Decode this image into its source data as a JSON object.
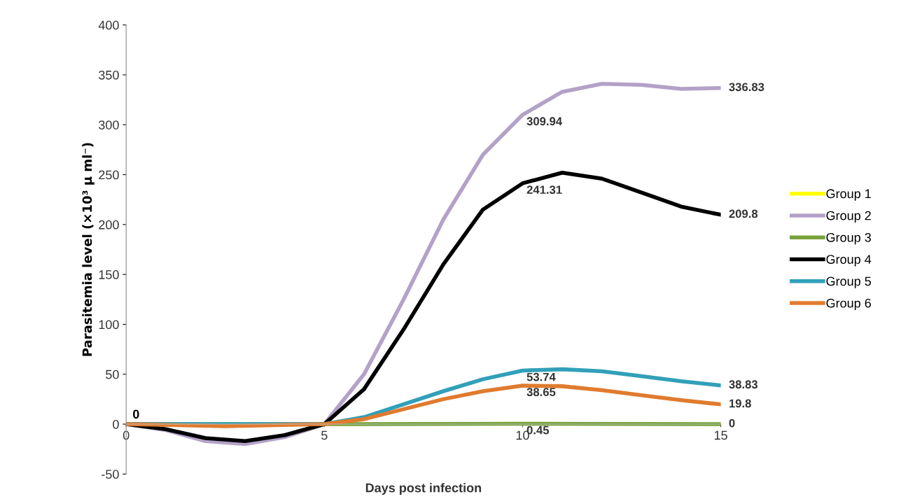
{
  "chart_data": {
    "type": "line",
    "xlabel": "Days post infection",
    "ylabel": "Parasitemia level (×10³ μ ml⁻)",
    "xlim": [
      0,
      15
    ],
    "xticks": [
      0,
      5,
      10,
      15
    ],
    "ylim": [
      -50,
      400
    ],
    "yticks": [
      -50,
      0,
      50,
      100,
      150,
      200,
      250,
      300,
      350,
      400
    ],
    "grid": false,
    "legend": "right",
    "marker": "none",
    "line_style": "solid",
    "series": [
      {
        "name": "Group 1",
        "color": "#ffff00"
      },
      {
        "name": "Group 2",
        "color": "#b3a2c7",
        "x": [
          0,
          1,
          2,
          3,
          4,
          5,
          6,
          7,
          8,
          9,
          10,
          11,
          12,
          13,
          14,
          15
        ],
        "values": [
          0,
          -6,
          -17,
          -20,
          -13,
          0,
          50,
          125,
          205,
          270,
          309.94,
          333,
          341,
          340,
          336,
          336.83
        ],
        "value_labels": [
          null,
          null,
          null,
          null,
          null,
          null,
          null,
          null,
          null,
          null,
          "309.94",
          null,
          null,
          null,
          null,
          "336.83"
        ]
      },
      {
        "name": "Group 3",
        "color": "#77a23b",
        "x": [
          0,
          5,
          10,
          15
        ],
        "values": [
          0,
          0,
          0.45,
          0
        ],
        "value_labels": [
          "0",
          null,
          "0.45",
          "0"
        ]
      },
      {
        "name": "Group 4",
        "color": "#000000",
        "x": [
          0,
          1,
          2,
          3,
          4,
          5,
          6,
          7,
          8,
          9,
          10,
          11,
          12,
          13,
          14,
          15
        ],
        "values": [
          0,
          -5,
          -14,
          -17,
          -11,
          0,
          35,
          95,
          160,
          215,
          241.31,
          252,
          246,
          232,
          218,
          209.8
        ],
        "value_labels": [
          null,
          null,
          null,
          null,
          null,
          null,
          null,
          null,
          null,
          null,
          "241.31",
          null,
          null,
          null,
          null,
          "209.8"
        ]
      },
      {
        "name": "Group 5",
        "color": "#31a0b8",
        "x": [
          0,
          5,
          6,
          7,
          8,
          9,
          10,
          11,
          12,
          13,
          14,
          15
        ],
        "values": [
          0,
          0,
          7,
          20,
          33,
          45,
          53.74,
          55,
          53,
          48,
          43,
          38.83
        ],
        "value_labels": [
          null,
          null,
          null,
          null,
          null,
          null,
          "53.74",
          null,
          null,
          null,
          null,
          "38.83"
        ]
      },
      {
        "name": "Group 6",
        "color": "#e07b2e",
        "x": [
          0,
          2.5,
          5,
          6,
          7,
          8,
          9,
          10,
          11,
          12,
          13,
          14,
          15
        ],
        "values": [
          0,
          -2,
          0,
          5,
          15,
          25,
          33,
          38.65,
          38,
          34,
          29,
          24,
          19.8
        ],
        "value_labels": [
          null,
          null,
          null,
          null,
          null,
          null,
          null,
          "38.65",
          null,
          null,
          null,
          null,
          "19.8"
        ]
      }
    ]
  }
}
